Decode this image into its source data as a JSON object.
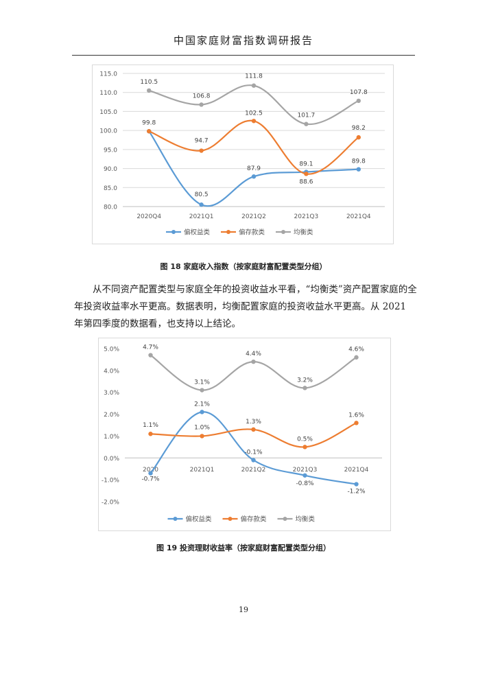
{
  "header": {
    "title": "中国家庭财富指数调研报告"
  },
  "figure1": {
    "caption": "图 18 家庭收入指数（按家庭财富配置类型分组）"
  },
  "figure2": {
    "caption": "图 19 投资理财收益率（按家庭财富配置类型分组）"
  },
  "paragraph": {
    "text": "从不同资产配置类型与家庭全年的投资收益水平看，“均衡类”资产配置家庭的全年投资收益率水平更高。数据表明，均衡配置家庭的投资收益水平更高。从 2021 年第四季度的数据看，也支持以上结论。"
  },
  "footer": {
    "page_number": "19"
  },
  "colors": {
    "series_blue": "#5b9bd5",
    "series_orange": "#ed7d31",
    "series_gray": "#a5a5a5",
    "grid": "#d9d9d9",
    "axis_text": "#595959"
  },
  "chart_data": [
    {
      "type": "line",
      "categories": [
        "2020Q4",
        "2021Q1",
        "2021Q2",
        "2021Q3",
        "2021Q4"
      ],
      "series": [
        {
          "name": "偏权益类",
          "values": [
            99.8,
            80.5,
            87.9,
            89.1,
            89.8
          ],
          "labels": [
            "99.8",
            "80.5",
            "87.9",
            "89.1",
            "89.8"
          ],
          "color": "#5b9bd5"
        },
        {
          "name": "偏存款类",
          "values": [
            99.8,
            94.7,
            102.5,
            88.6,
            98.2
          ],
          "labels": [
            "",
            "94.7",
            "102.5",
            "88.6",
            "98.2"
          ],
          "color": "#ed7d31"
        },
        {
          "name": "均衡类",
          "values": [
            110.5,
            106.8,
            111.8,
            101.7,
            107.8
          ],
          "labels": [
            "110.5",
            "106.8",
            "111.8",
            "101.7",
            "107.8"
          ],
          "color": "#a5a5a5"
        }
      ],
      "ylim": [
        80,
        115
      ],
      "yticks": [
        "80.0",
        "85.0",
        "90.0",
        "95.0",
        "100.0",
        "105.0",
        "110.0",
        "115.0"
      ],
      "ytick_values": [
        80,
        85,
        90,
        95,
        100,
        105,
        110,
        115
      ],
      "grid": true,
      "legend": "bottom",
      "smooth": true
    },
    {
      "type": "line",
      "categories": [
        "2020",
        "2021Q1",
        "2021Q2",
        "2021Q3",
        "2021Q4"
      ],
      "series": [
        {
          "name": "偏权益类",
          "values": [
            -0.7,
            2.1,
            -0.1,
            -0.8,
            -1.2
          ],
          "labels": [
            "-0.7%",
            "2.1%",
            "-0.1%",
            "-0.8%",
            "-1.2%"
          ],
          "color": "#5b9bd5"
        },
        {
          "name": "偏存款类",
          "values": [
            1.1,
            1.0,
            1.3,
            0.5,
            1.6
          ],
          "labels": [
            "1.1%",
            "1.0%",
            "1.3%",
            "0.5%",
            "1.6%"
          ],
          "color": "#ed7d31"
        },
        {
          "name": "均衡类",
          "values": [
            4.7,
            3.1,
            4.4,
            3.2,
            4.6
          ],
          "labels": [
            "4.7%",
            "3.1%",
            "4.4%",
            "3.2%",
            "4.6%"
          ],
          "color": "#a5a5a5"
        }
      ],
      "ylim": [
        -2,
        5
      ],
      "yticks": [
        "-2.0%",
        "-1.0%",
        "0.0%",
        "1.0%",
        "2.0%",
        "3.0%",
        "4.0%",
        "5.0%"
      ],
      "ytick_values": [
        -2,
        -1,
        0,
        1,
        2,
        3,
        4,
        5
      ],
      "grid": false,
      "legend": "bottom",
      "smooth": true
    }
  ]
}
